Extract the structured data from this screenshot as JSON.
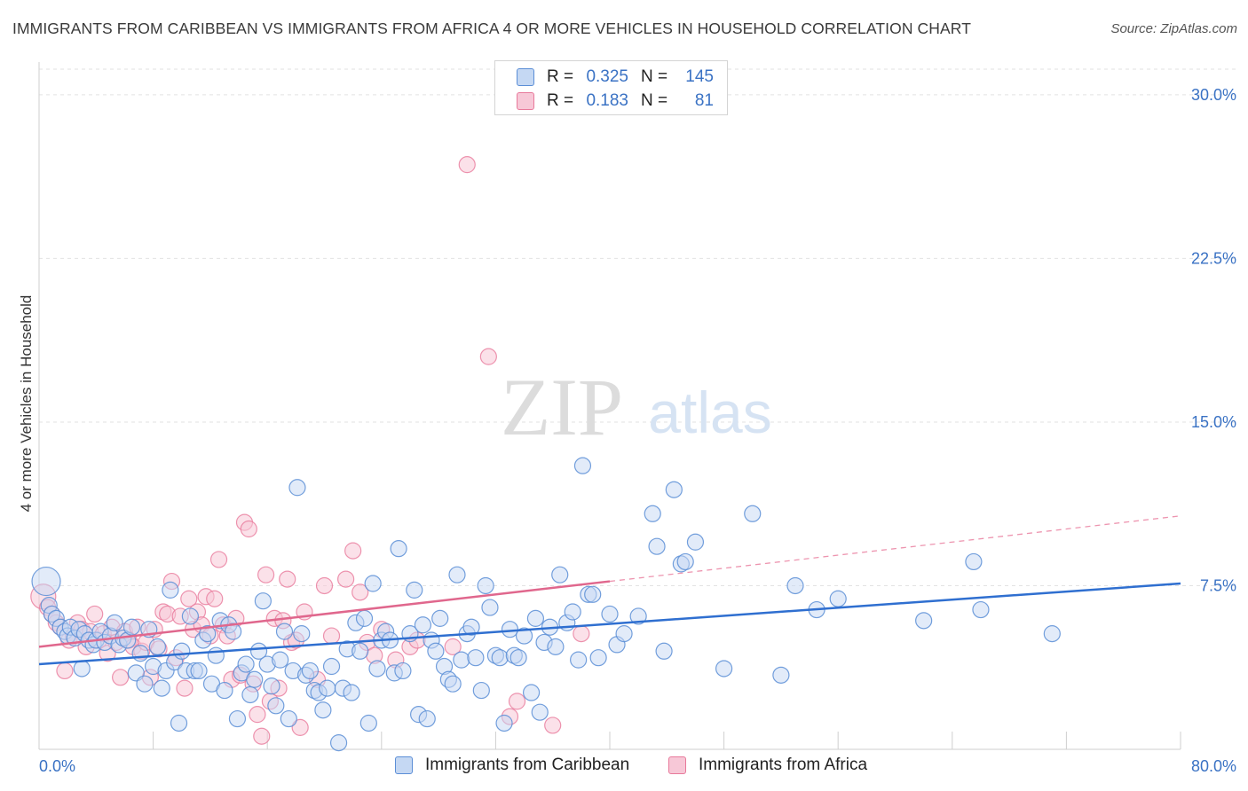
{
  "title": "IMMIGRANTS FROM CARIBBEAN VS IMMIGRANTS FROM AFRICA 4 OR MORE VEHICLES IN HOUSEHOLD CORRELATION CHART",
  "source": "Source: ZipAtlas.com",
  "watermark": {
    "zip": "ZIP",
    "atlas": "atlas"
  },
  "legend": {
    "rows": [
      {
        "r_label": "R =",
        "r_value": "0.325",
        "n_label": "N =",
        "n_value": "145",
        "color": "#5b8ed6"
      },
      {
        "r_label": "R =",
        "r_value": "0.183",
        "n_label": "N =",
        "n_value": "81",
        "color": "#e8799b"
      }
    ]
  },
  "chart_data": {
    "type": "scatter",
    "title": "IMMIGRANTS FROM CARIBBEAN VS IMMIGRANTS FROM AFRICA 4 OR MORE VEHICLES IN HOUSEHOLD CORRELATION CHART",
    "xlabel": "",
    "ylabel": "4 or more Vehicles in Household",
    "xlim": [
      0,
      80
    ],
    "ylim": [
      0,
      31.5
    ],
    "x_tick_labels": [
      "0.0%",
      "80.0%"
    ],
    "y_ticks": [
      7.5,
      15.0,
      22.5,
      30.0
    ],
    "y_tick_labels": [
      "7.5%",
      "15.0%",
      "22.5%",
      "30.0%"
    ],
    "grid": "horizontal dashed",
    "legend_position": "top-center and bottom",
    "colors": {
      "caribbean": "#5b8ed6",
      "africa": "#e8799b",
      "caribbean_fill": "#c5d8f3",
      "africa_fill": "#f7c8d7",
      "axis_text": "#3a72c4"
    },
    "series": [
      {
        "name": "Immigrants from Caribbean",
        "r": 0.325,
        "n": 145,
        "trend": {
          "x": [
            0,
            80
          ],
          "y": [
            3.9,
            7.6
          ],
          "style": "solid"
        },
        "points": [
          [
            0.5,
            7.7
          ],
          [
            0.7,
            6.6
          ],
          [
            0.9,
            6.2
          ],
          [
            1.2,
            6.0
          ],
          [
            1.5,
            5.6
          ],
          [
            1.8,
            5.4
          ],
          [
            2.0,
            5.2
          ],
          [
            2.2,
            5.6
          ],
          [
            2.5,
            5.1
          ],
          [
            2.8,
            5.5
          ],
          [
            3.0,
            3.7
          ],
          [
            3.2,
            5.3
          ],
          [
            3.5,
            5.0
          ],
          [
            3.8,
            4.8
          ],
          [
            4.0,
            5.0
          ],
          [
            4.3,
            5.4
          ],
          [
            4.6,
            4.9
          ],
          [
            5.0,
            5.2
          ],
          [
            5.3,
            5.8
          ],
          [
            5.6,
            4.8
          ],
          [
            5.9,
            5.1
          ],
          [
            6.2,
            5.0
          ],
          [
            6.5,
            5.6
          ],
          [
            6.8,
            3.5
          ],
          [
            7.1,
            4.4
          ],
          [
            7.4,
            3.0
          ],
          [
            7.7,
            5.5
          ],
          [
            8.0,
            3.8
          ],
          [
            8.3,
            4.7
          ],
          [
            8.6,
            2.8
          ],
          [
            8.9,
            3.6
          ],
          [
            9.2,
            7.3
          ],
          [
            9.5,
            4.0
          ],
          [
            9.8,
            1.2
          ],
          [
            10.0,
            4.5
          ],
          [
            10.3,
            3.6
          ],
          [
            10.6,
            6.1
          ],
          [
            10.9,
            3.6
          ],
          [
            11.2,
            3.6
          ],
          [
            11.5,
            5.0
          ],
          [
            11.8,
            5.3
          ],
          [
            12.1,
            3.0
          ],
          [
            12.4,
            4.3
          ],
          [
            12.7,
            5.9
          ],
          [
            13.0,
            2.7
          ],
          [
            13.3,
            5.7
          ],
          [
            13.6,
            5.4
          ],
          [
            13.9,
            1.4
          ],
          [
            14.2,
            3.5
          ],
          [
            14.5,
            3.9
          ],
          [
            14.8,
            2.5
          ],
          [
            15.1,
            3.2
          ],
          [
            15.4,
            4.5
          ],
          [
            15.7,
            6.8
          ],
          [
            16.0,
            3.9
          ],
          [
            16.3,
            2.9
          ],
          [
            16.6,
            2.0
          ],
          [
            16.9,
            4.1
          ],
          [
            17.2,
            5.4
          ],
          [
            17.5,
            1.4
          ],
          [
            17.8,
            3.6
          ],
          [
            18.1,
            12.0
          ],
          [
            18.4,
            5.3
          ],
          [
            18.7,
            3.4
          ],
          [
            19.0,
            3.6
          ],
          [
            19.3,
            2.7
          ],
          [
            19.6,
            2.6
          ],
          [
            19.9,
            1.8
          ],
          [
            20.2,
            2.8
          ],
          [
            20.5,
            3.8
          ],
          [
            21.0,
            0.3
          ],
          [
            21.3,
            2.8
          ],
          [
            21.6,
            4.6
          ],
          [
            21.9,
            2.6
          ],
          [
            22.2,
            5.8
          ],
          [
            22.5,
            4.5
          ],
          [
            22.8,
            6.0
          ],
          [
            23.1,
            1.2
          ],
          [
            23.4,
            7.6
          ],
          [
            23.7,
            3.7
          ],
          [
            24.0,
            5.0
          ],
          [
            24.3,
            5.4
          ],
          [
            24.6,
            5.0
          ],
          [
            24.9,
            3.5
          ],
          [
            25.2,
            9.2
          ],
          [
            25.5,
            3.6
          ],
          [
            26.0,
            5.3
          ],
          [
            26.3,
            7.3
          ],
          [
            26.6,
            1.6
          ],
          [
            26.9,
            5.7
          ],
          [
            27.2,
            1.4
          ],
          [
            27.5,
            5.0
          ],
          [
            27.8,
            4.5
          ],
          [
            28.1,
            6.0
          ],
          [
            28.4,
            3.8
          ],
          [
            28.7,
            3.2
          ],
          [
            29.0,
            3.0
          ],
          [
            29.3,
            8.0
          ],
          [
            29.6,
            4.1
          ],
          [
            30.0,
            5.3
          ],
          [
            30.3,
            5.6
          ],
          [
            30.6,
            4.2
          ],
          [
            31.0,
            2.7
          ],
          [
            31.3,
            7.5
          ],
          [
            31.6,
            6.5
          ],
          [
            32.0,
            4.3
          ],
          [
            32.3,
            4.2
          ],
          [
            32.6,
            1.2
          ],
          [
            33.0,
            5.5
          ],
          [
            33.3,
            4.3
          ],
          [
            33.6,
            4.2
          ],
          [
            34.0,
            5.2
          ],
          [
            34.5,
            2.6
          ],
          [
            34.8,
            6.0
          ],
          [
            35.1,
            1.7
          ],
          [
            35.4,
            4.9
          ],
          [
            35.8,
            5.6
          ],
          [
            36.2,
            4.7
          ],
          [
            36.5,
            8.0
          ],
          [
            37.0,
            5.8
          ],
          [
            37.4,
            6.3
          ],
          [
            37.8,
            4.1
          ],
          [
            38.1,
            13.0
          ],
          [
            38.5,
            7.1
          ],
          [
            38.8,
            7.1
          ],
          [
            39.2,
            4.2
          ],
          [
            40.0,
            6.2
          ],
          [
            40.5,
            4.8
          ],
          [
            41.0,
            5.3
          ],
          [
            42.0,
            6.1
          ],
          [
            43.0,
            10.8
          ],
          [
            43.3,
            9.3
          ],
          [
            43.8,
            4.5
          ],
          [
            44.5,
            11.9
          ],
          [
            45.0,
            8.5
          ],
          [
            45.3,
            8.6
          ],
          [
            46.0,
            9.5
          ],
          [
            48.0,
            3.7
          ],
          [
            50.0,
            10.8
          ],
          [
            52.0,
            3.4
          ],
          [
            53.0,
            7.5
          ],
          [
            54.5,
            6.4
          ],
          [
            56.0,
            6.9
          ],
          [
            62.0,
            5.9
          ],
          [
            65.5,
            8.6
          ],
          [
            66.0,
            6.4
          ],
          [
            71.0,
            5.3
          ]
        ]
      },
      {
        "name": "Immigrants from Africa",
        "r": 0.183,
        "n": 81,
        "trend": {
          "x": [
            0,
            40
          ],
          "y": [
            4.7,
            7.7
          ],
          "style": "solid",
          "extension": {
            "x": [
              40,
              80
            ],
            "y": [
              7.7,
              10.7
            ],
            "style": "dashed"
          }
        },
        "points": [
          [
            0.3,
            7.0
          ],
          [
            0.6,
            6.5
          ],
          [
            0.9,
            6.2
          ],
          [
            1.2,
            5.8
          ],
          [
            1.5,
            5.6
          ],
          [
            1.8,
            3.6
          ],
          [
            2.1,
            5.0
          ],
          [
            2.4,
            5.2
          ],
          [
            2.7,
            5.8
          ],
          [
            3.0,
            5.5
          ],
          [
            3.3,
            4.7
          ],
          [
            3.6,
            5.4
          ],
          [
            3.9,
            6.2
          ],
          [
            4.2,
            5.0
          ],
          [
            4.5,
            5.3
          ],
          [
            4.8,
            4.4
          ],
          [
            5.1,
            5.6
          ],
          [
            5.4,
            4.9
          ],
          [
            5.7,
            3.3
          ],
          [
            6.0,
            5.4
          ],
          [
            6.3,
            5.0
          ],
          [
            6.6,
            4.7
          ],
          [
            6.9,
            5.6
          ],
          [
            7.2,
            4.5
          ],
          [
            7.5,
            4.9
          ],
          [
            7.8,
            3.3
          ],
          [
            8.1,
            5.5
          ],
          [
            8.4,
            4.6
          ],
          [
            8.7,
            6.3
          ],
          [
            9.0,
            6.2
          ],
          [
            9.3,
            7.7
          ],
          [
            9.6,
            4.2
          ],
          [
            9.9,
            6.1
          ],
          [
            10.2,
            2.8
          ],
          [
            10.5,
            6.9
          ],
          [
            10.8,
            5.5
          ],
          [
            11.1,
            6.3
          ],
          [
            11.4,
            5.7
          ],
          [
            11.7,
            7.0
          ],
          [
            12.0,
            5.2
          ],
          [
            12.3,
            6.9
          ],
          [
            12.6,
            8.7
          ],
          [
            12.9,
            5.7
          ],
          [
            13.2,
            5.2
          ],
          [
            13.5,
            3.2
          ],
          [
            13.8,
            6.0
          ],
          [
            14.1,
            3.4
          ],
          [
            14.4,
            10.4
          ],
          [
            14.7,
            10.1
          ],
          [
            15.0,
            3.0
          ],
          [
            15.3,
            1.6
          ],
          [
            15.6,
            0.6
          ],
          [
            15.9,
            8.0
          ],
          [
            16.2,
            2.2
          ],
          [
            16.5,
            6.0
          ],
          [
            16.8,
            2.8
          ],
          [
            17.1,
            5.9
          ],
          [
            17.4,
            7.8
          ],
          [
            17.7,
            4.9
          ],
          [
            18.0,
            5.0
          ],
          [
            18.3,
            1.0
          ],
          [
            18.6,
            6.3
          ],
          [
            19.5,
            3.2
          ],
          [
            20.0,
            7.5
          ],
          [
            20.5,
            5.2
          ],
          [
            21.5,
            7.8
          ],
          [
            22.0,
            9.1
          ],
          [
            22.5,
            7.2
          ],
          [
            23.0,
            4.9
          ],
          [
            23.5,
            4.3
          ],
          [
            24.0,
            5.5
          ],
          [
            25.0,
            4.1
          ],
          [
            26.0,
            4.7
          ],
          [
            26.5,
            5.0
          ],
          [
            29.0,
            4.7
          ],
          [
            30.0,
            26.8
          ],
          [
            31.5,
            18.0
          ],
          [
            33.0,
            1.5
          ],
          [
            33.5,
            2.2
          ],
          [
            36.0,
            1.1
          ],
          [
            38.0,
            5.3
          ]
        ]
      }
    ]
  },
  "bottom_legend": [
    {
      "label": "Immigrants from Caribbean",
      "color": "#5b8ed6"
    },
    {
      "label": "Immigrants from Africa",
      "color": "#e8799b"
    }
  ]
}
